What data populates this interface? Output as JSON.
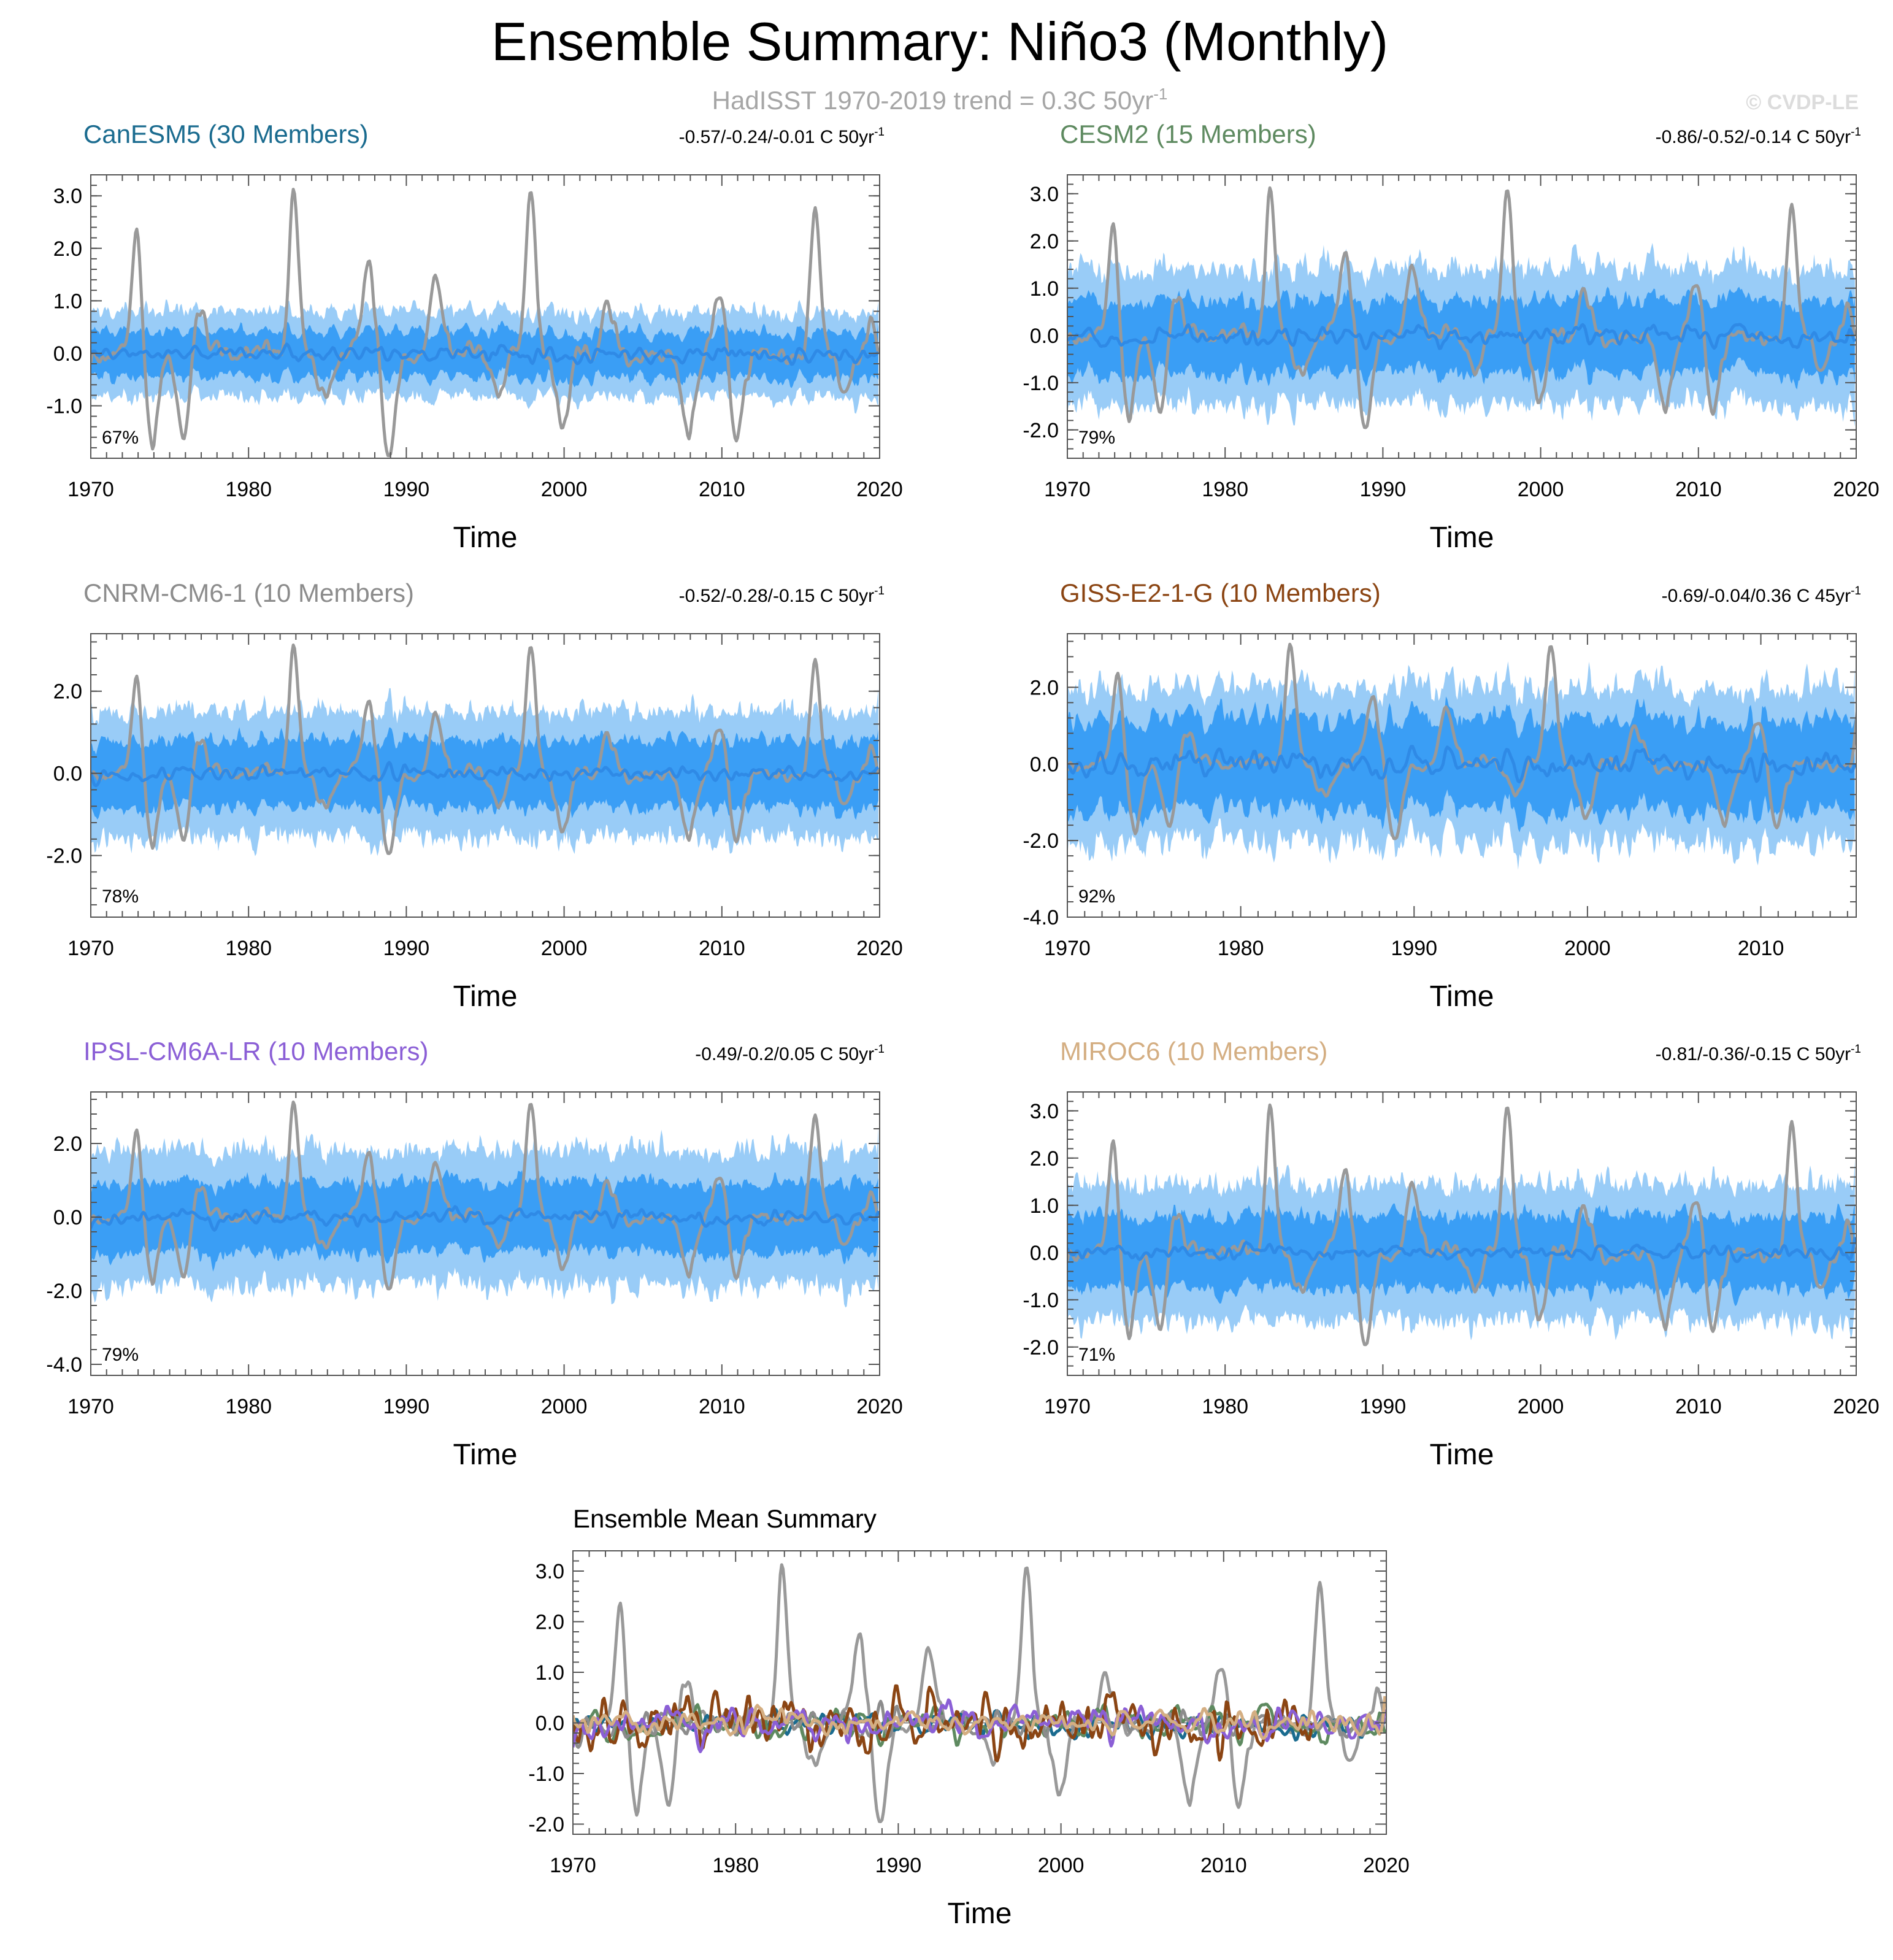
{
  "title": "Ensemble Summary: Niño3 (Monthly)",
  "subtitle": "HadISST 1970-2019 trend = 0.3C 50yr",
  "subtitle_sup": "-1",
  "copyright": "© CVDP-LE",
  "colors": {
    "obs": "#999999",
    "band_outer": "#99ccf7",
    "band_inner": "#3a9ef5",
    "ens_mean": "#2f8ae6",
    "zero_line": "#666666"
  },
  "chart_data": [
    {
      "type": "line",
      "id": "canesm5",
      "title": "CanESM5 (30 Members)",
      "title_color": "#1a6b8f",
      "trend_text": "-0.57/-0.24/-0.01 C 50yr",
      "trend_sup": "-1",
      "percent": "67%",
      "xlabel": "Time",
      "xlim": [
        1970,
        2020
      ],
      "ylim": [
        -2.0,
        3.4
      ],
      "xticks": [
        1970,
        1980,
        1990,
        2000,
        2010,
        2020
      ],
      "yticks": [
        3.0,
        2.0,
        1.0,
        0.0,
        -1.0
      ],
      "ytick_labels": [
        "3.0",
        "2.0",
        "1.0",
        "0.0",
        "-1.0"
      ],
      "series": [
        {
          "name": "HadISST observations",
          "role": "obs",
          "seed": 1
        },
        {
          "name": "Ensemble mean",
          "role": "mean",
          "amp": 0.25,
          "seed": 11
        },
        {
          "name": "Ensemble spread",
          "role": "band",
          "outer": 0.85,
          "inner": 0.45,
          "seed": 21
        }
      ]
    },
    {
      "type": "line",
      "id": "cesm2",
      "title": "CESM2 (15 Members)",
      "title_color": "#5e8a60",
      "trend_text": "-0.86/-0.52/-0.14 C 50yr",
      "trend_sup": "-1",
      "percent": "79%",
      "xlabel": "Time",
      "xlim": [
        1970,
        2020
      ],
      "ylim": [
        -2.6,
        3.4
      ],
      "xticks": [
        1970,
        1980,
        1990,
        2000,
        2010,
        2020
      ],
      "yticks": [
        3.0,
        2.0,
        1.0,
        0.0,
        -1.0,
        -2.0
      ],
      "ytick_labels": [
        "3.0",
        "2.0",
        "1.0",
        "0.0",
        "-1.0",
        "-2.0"
      ],
      "series": [
        {
          "name": "HadISST observations",
          "role": "obs",
          "seed": 1
        },
        {
          "name": "Ensemble mean",
          "role": "mean",
          "amp": 0.35,
          "seed": 12
        },
        {
          "name": "Ensemble spread",
          "role": "band",
          "outer": 1.5,
          "inner": 0.8,
          "seed": 22
        }
      ]
    },
    {
      "type": "line",
      "id": "cnrm",
      "title": "CNRM-CM6-1 (10 Members)",
      "title_color": "#8c8c8c",
      "trend_text": "-0.52/-0.28/-0.15 C 50yr",
      "trend_sup": "-1",
      "percent": "78%",
      "xlabel": "Time",
      "xlim": [
        1970,
        2020
      ],
      "ylim": [
        -3.5,
        3.4
      ],
      "xticks": [
        1970,
        1980,
        1990,
        2000,
        2010,
        2020
      ],
      "yticks": [
        2.0,
        0.0,
        -2.0
      ],
      "ytick_labels": [
        "2.0",
        "0.0",
        "-2.0"
      ],
      "series": [
        {
          "name": "HadISST observations",
          "role": "obs",
          "seed": 1
        },
        {
          "name": "Ensemble mean",
          "role": "mean",
          "amp": 0.3,
          "seed": 13
        },
        {
          "name": "Ensemble spread",
          "role": "band",
          "outer": 1.6,
          "inner": 0.85,
          "seed": 23
        }
      ]
    },
    {
      "type": "line",
      "id": "giss",
      "title": "GISS-E2-1-G (10 Members)",
      "title_color": "#8b4513",
      "trend_text": "-0.69/-0.04/0.36 C 45yr",
      "trend_sup": "-1",
      "percent": "92%",
      "xlabel": "Time",
      "xlim": [
        1970,
        2015.5
      ],
      "ylim": [
        -4.0,
        3.4
      ],
      "xticks": [
        1970,
        1980,
        1990,
        2000,
        2010
      ],
      "yticks": [
        2.0,
        0.0,
        -2.0,
        -4.0
      ],
      "ytick_labels": [
        "2.0",
        "0.0",
        "-2.0",
        "-4.0"
      ],
      "series": [
        {
          "name": "HadISST observations",
          "role": "obs",
          "seed": 1
        },
        {
          "name": "Ensemble mean",
          "role": "mean",
          "amp": 0.55,
          "seed": 14
        },
        {
          "name": "Ensemble spread",
          "role": "band",
          "outer": 2.1,
          "inner": 1.25,
          "seed": 24
        }
      ]
    },
    {
      "type": "line",
      "id": "ipsl",
      "title": "IPSL-CM6A-LR (10 Members)",
      "title_color": "#8b5fd6",
      "trend_text": "-0.49/-0.2/0.05 C 50yr",
      "trend_sup": "-1",
      "percent": "79%",
      "xlabel": "Time",
      "xlim": [
        1970,
        2020
      ],
      "ylim": [
        -4.3,
        3.4
      ],
      "xticks": [
        1970,
        1980,
        1990,
        2000,
        2010,
        2020
      ],
      "yticks": [
        2.0,
        0.0,
        -2.0,
        -4.0
      ],
      "ytick_labels": [
        "2.0",
        "0.0",
        "-2.0",
        "-4.0"
      ],
      "series": [
        {
          "name": "HadISST observations",
          "role": "obs",
          "seed": 1
        },
        {
          "name": "Ensemble mean",
          "role": "mean",
          "amp": 0.35,
          "seed": 15
        },
        {
          "name": "Ensemble spread",
          "role": "band",
          "outer": 1.9,
          "inner": 1.0,
          "seed": 25
        }
      ]
    },
    {
      "type": "line",
      "id": "miroc6",
      "title": "MIROC6 (10 Members)",
      "title_color": "#d4ae82",
      "trend_text": "-0.81/-0.36/-0.15 C 50yr",
      "trend_sup": "-1",
      "percent": "71%",
      "xlabel": "Time",
      "xlim": [
        1970,
        2020
      ],
      "ylim": [
        -2.6,
        3.4
      ],
      "xticks": [
        1970,
        1980,
        1990,
        2000,
        2010,
        2020
      ],
      "yticks": [
        3.0,
        2.0,
        1.0,
        0.0,
        -1.0,
        -2.0
      ],
      "ytick_labels": [
        "3.0",
        "2.0",
        "1.0",
        "0.0",
        "-1.0",
        "-2.0"
      ],
      "series": [
        {
          "name": "HadISST observations",
          "role": "obs",
          "seed": 1
        },
        {
          "name": "Ensemble mean",
          "role": "mean",
          "amp": 0.3,
          "seed": 16
        },
        {
          "name": "Ensemble spread",
          "role": "band",
          "outer": 1.5,
          "inner": 0.8,
          "seed": 26
        }
      ]
    },
    {
      "type": "line",
      "id": "summary",
      "title": "Ensemble Mean Summary",
      "xlabel": "Time",
      "xlim": [
        1970,
        2020
      ],
      "ylim": [
        -2.2,
        3.4
      ],
      "xticks": [
        1970,
        1980,
        1990,
        2000,
        2010,
        2020
      ],
      "yticks": [
        3.0,
        2.0,
        1.0,
        0.0,
        -1.0,
        -2.0
      ],
      "ytick_labels": [
        "3.0",
        "2.0",
        "1.0",
        "0.0",
        "-1.0",
        "-2.0"
      ],
      "series": [
        {
          "name": "HadISST observations",
          "role": "obs",
          "color": "#999999",
          "seed": 1
        },
        {
          "name": "CanESM5",
          "role": "mean",
          "color": "#1a6b8f",
          "amp": 0.25,
          "seed": 11
        },
        {
          "name": "CESM2",
          "role": "mean",
          "color": "#5e8a60",
          "amp": 0.35,
          "seed": 12
        },
        {
          "name": "CNRM-CM6-1",
          "role": "mean",
          "color": "#8c8c8c",
          "amp": 0.3,
          "seed": 13
        },
        {
          "name": "GISS-E2-1-G",
          "role": "mean",
          "color": "#8b4513",
          "amp": 0.55,
          "seed": 14,
          "xmax": 2015.5
        },
        {
          "name": "IPSL-CM6A-LR",
          "role": "mean",
          "color": "#8b5fd6",
          "amp": 0.35,
          "seed": 15
        },
        {
          "name": "MIROC6",
          "role": "mean",
          "color": "#d4ae82",
          "amp": 0.3,
          "seed": 16
        }
      ]
    }
  ],
  "hadisst_events": [
    {
      "t": 1972.9,
      "v": 2.4
    },
    {
      "t": 1973.9,
      "v": -1.7
    },
    {
      "t": 1975.9,
      "v": -1.6
    },
    {
      "t": 1976.9,
      "v": 0.9
    },
    {
      "t": 1982.9,
      "v": 3.05
    },
    {
      "t": 1984.9,
      "v": -0.9
    },
    {
      "t": 1987.6,
      "v": 1.6
    },
    {
      "t": 1988.9,
      "v": -1.9
    },
    {
      "t": 1991.9,
      "v": 1.4
    },
    {
      "t": 1995.9,
      "v": -0.8
    },
    {
      "t": 1997.9,
      "v": 3.25
    },
    {
      "t": 1999.9,
      "v": -1.5
    },
    {
      "t": 2002.8,
      "v": 0.8
    },
    {
      "t": 2007.9,
      "v": -1.5
    },
    {
      "t": 2009.9,
      "v": 1.1
    },
    {
      "t": 2010.9,
      "v": -1.8
    },
    {
      "t": 2015.9,
      "v": 2.7
    },
    {
      "t": 2017.9,
      "v": -0.8
    },
    {
      "t": 2019.5,
      "v": 0.6
    }
  ]
}
